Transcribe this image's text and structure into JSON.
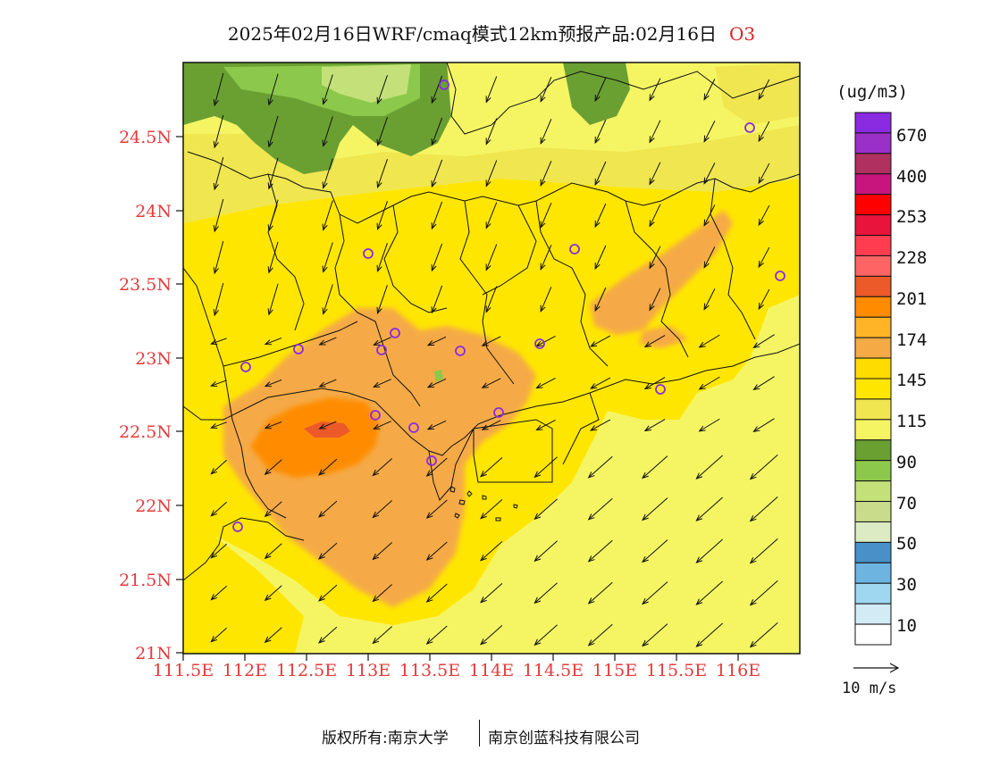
{
  "title": {
    "main": "2025年02月16日WRF/cmaq模式12km预报产品:02月16日",
    "species": "O3"
  },
  "map": {
    "lat_labels": [
      "24.5N",
      "24N",
      "23.5N",
      "23N",
      "22.5N",
      "22N",
      "21.5N",
      "21N"
    ],
    "lon_labels": [
      "111.5E",
      "112E",
      "112.5E",
      "113E",
      "113.5E",
      "114E",
      "114.5E",
      "115E",
      "115.5E",
      "116E"
    ],
    "lon_range": [
      111.5,
      116.5
    ],
    "lat_range": [
      21.0,
      25.0
    ]
  },
  "legend": {
    "units": "(ug/m3)",
    "labels": [
      "670",
      "400",
      "253",
      "228",
      "201",
      "174",
      "145",
      "115",
      "90",
      "70",
      "50",
      "30",
      "10"
    ],
    "colors": [
      "#8a2be2",
      "#9b30c8",
      "#b03060",
      "#c8157e",
      "#ff0000",
      "#e8143c",
      "#ff3c50",
      "#ff6464",
      "#ec5a2a",
      "#ff8c00",
      "#ffb428",
      "#f5aa46",
      "#ffdc00",
      "#ffe600",
      "#f0e650",
      "#f5f564",
      "#6aa032",
      "#8cc84b",
      "#c3e178",
      "#c8dc8c",
      "#dcebc3",
      "#4a90c8",
      "#6eb4e1",
      "#a0d7f0",
      "#d2ebf5",
      "#ffffff"
    ],
    "wind_reference": "10 m/s"
  },
  "colors": {
    "ocean_base": "#f5f564",
    "land_base": "#ffe600",
    "moderate_high": "#f5aa46",
    "high": "#ff8c00",
    "peak": "#ec5a2a",
    "mountain_green": "#6aa032",
    "light_green": "#8cc84b",
    "lime": "#c3e178",
    "site_circle": "#8a2be2",
    "axis_label": "#e53a3a"
  },
  "footer": {
    "copyright": "版权所有:南京大学",
    "company": "南京创蓝科技有限公司"
  }
}
